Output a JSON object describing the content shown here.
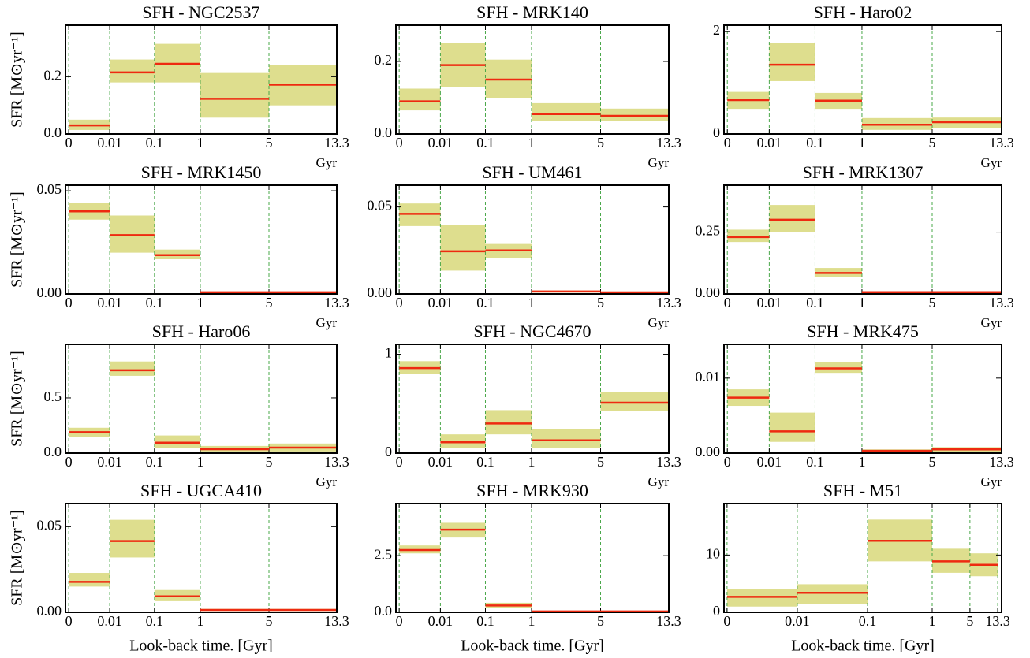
{
  "chart_data": [
    {
      "type": "binned-sfh",
      "title": "SFH - NGC2537",
      "bin_edges": [
        0,
        0.01,
        0.1,
        1,
        5,
        13.3
      ],
      "values": [
        0.03,
        0.215,
        0.245,
        0.123,
        0.172
      ],
      "lower": [
        0.014,
        0.18,
        0.18,
        0.057,
        0.1
      ],
      "upper": [
        0.05,
        0.26,
        0.315,
        0.213,
        0.24
      ],
      "ylim": [
        0,
        0.38
      ],
      "yticks": [
        {
          "value": 0,
          "label": "0.0"
        },
        {
          "value": 0.2,
          "label": "0.2"
        }
      ],
      "ylabel": "SFR [M⊙yr⁻¹]",
      "x_unit": "Gyr",
      "color": "#ee2a10",
      "band_color": "#dede8e",
      "edge_color": "#4aa84a"
    },
    {
      "type": "binned-sfh",
      "title": "SFH - MRK140",
      "bin_edges": [
        0,
        0.01,
        0.1,
        1,
        5,
        13.3
      ],
      "values": [
        0.09,
        0.19,
        0.15,
        0.055,
        0.05
      ],
      "lower": [
        0.065,
        0.13,
        0.1,
        0.035,
        0.035
      ],
      "upper": [
        0.125,
        0.25,
        0.205,
        0.085,
        0.07
      ],
      "ylim": [
        0,
        0.3
      ],
      "yticks": [
        {
          "value": 0,
          "label": "0.0"
        },
        {
          "value": 0.2,
          "label": "0.2"
        }
      ],
      "x_unit": "Gyr",
      "color": "#ee2a10",
      "band_color": "#dede8e",
      "edge_color": "#4aa84a"
    },
    {
      "type": "binned-sfh",
      "title": "SFH - Haro02",
      "bin_edges": [
        0,
        0.01,
        0.1,
        1,
        5,
        13.3
      ],
      "values": [
        0.66,
        1.35,
        0.65,
        0.18,
        0.23
      ],
      "lower": [
        0.49,
        1.03,
        0.49,
        0.08,
        0.12
      ],
      "upper": [
        0.82,
        1.77,
        0.8,
        0.31,
        0.32
      ],
      "ylim": [
        0,
        2.12
      ],
      "yticks": [
        0,
        2
      ],
      "x_unit": "Gyr",
      "color": "#ee2a10",
      "band_color": "#dede8e",
      "edge_color": "#4aa84a"
    },
    {
      "type": "binned-sfh",
      "title": "SFH - MRK1450",
      "bin_edges": [
        0,
        0.01,
        0.1,
        1,
        5,
        13.3
      ],
      "values": [
        0.04,
        0.0285,
        0.0188,
        0.0008,
        0.0008
      ],
      "lower": [
        0.036,
        0.02,
        0.0168,
        0.0003,
        0.0003
      ],
      "upper": [
        0.044,
        0.038,
        0.0215,
        0.0012,
        0.0012
      ],
      "ylim": [
        0,
        0.0527
      ],
      "yticks": [
        {
          "value": 0,
          "label": "0.00"
        },
        {
          "value": 0.05,
          "label": "0.05"
        }
      ],
      "ylabel": "SFR [M⊙yr⁻¹]",
      "x_unit": "Gyr",
      "color": "#ee2a10",
      "band_color": "#dede8e",
      "edge_color": "#4aa84a"
    },
    {
      "type": "binned-sfh",
      "title": "SFH - UM461",
      "bin_edges": [
        0,
        0.01,
        0.1,
        1,
        5,
        13.3
      ],
      "values": [
        0.046,
        0.0245,
        0.025,
        0.0014,
        0.0009
      ],
      "lower": [
        0.039,
        0.0134,
        0.0208,
        0.0008,
        0.0004
      ],
      "upper": [
        0.052,
        0.0398,
        0.0287,
        0.002,
        0.0014
      ],
      "ylim": [
        0,
        0.0625
      ],
      "yticks": [
        {
          "value": 0,
          "label": "0.00"
        },
        {
          "value": 0.05,
          "label": "0.05"
        }
      ],
      "x_unit": "Gyr",
      "color": "#ee2a10",
      "band_color": "#dede8e",
      "edge_color": "#4aa84a"
    },
    {
      "type": "binned-sfh",
      "title": "SFH - MRK1307",
      "bin_edges": [
        0,
        0.01,
        0.1,
        1,
        5,
        13.3
      ],
      "values": [
        0.23,
        0.3,
        0.085,
        0.007,
        0.007
      ],
      "lower": [
        0.21,
        0.25,
        0.068,
        0.003,
        0.003
      ],
      "upper": [
        0.26,
        0.36,
        0.105,
        0.01,
        0.01
      ],
      "ylim": [
        0,
        0.44
      ],
      "yticks": [
        {
          "value": 0,
          "label": "0.00"
        },
        {
          "value": 0.25,
          "label": "0.25"
        }
      ],
      "x_unit": "Gyr",
      "color": "#ee2a10",
      "band_color": "#dede8e",
      "edge_color": "#4aa84a"
    },
    {
      "type": "binned-sfh",
      "title": "SFH - Haro06",
      "bin_edges": [
        0,
        0.01,
        0.1,
        1,
        5,
        13.3
      ],
      "values": [
        0.19,
        0.75,
        0.095,
        0.036,
        0.05
      ],
      "lower": [
        0.145,
        0.7,
        0.05,
        0.015,
        0.015
      ],
      "upper": [
        0.23,
        0.83,
        0.16,
        0.065,
        0.087
      ],
      "ylim": [
        0,
        0.985
      ],
      "yticks": [
        {
          "value": 0,
          "label": "0.0"
        },
        {
          "value": 0.5,
          "label": "0.5"
        }
      ],
      "ylabel": "SFR [M⊙yr⁻¹]",
      "x_unit": "Gyr",
      "color": "#ee2a10",
      "band_color": "#dede8e",
      "edge_color": "#4aa84a"
    },
    {
      "type": "binned-sfh",
      "title": "SFH - NGC4670",
      "bin_edges": [
        0,
        0.01,
        0.1,
        1,
        5,
        13.3
      ],
      "values": [
        0.86,
        0.11,
        0.3,
        0.13,
        0.51
      ],
      "lower": [
        0.8,
        0.056,
        0.19,
        0.056,
        0.43
      ],
      "upper": [
        0.93,
        0.19,
        0.435,
        0.24,
        0.62
      ],
      "ylim": [
        0,
        1.1
      ],
      "yticks": [
        0,
        1
      ],
      "x_unit": "Gyr",
      "color": "#ee2a10",
      "band_color": "#dede8e",
      "edge_color": "#4aa84a"
    },
    {
      "type": "binned-sfh",
      "title": "SFH - MRK475",
      "bin_edges": [
        0,
        0.01,
        0.1,
        1,
        5,
        13.3
      ],
      "values": [
        0.0074,
        0.0029,
        0.0113,
        0.0003,
        0.0005
      ],
      "lower": [
        0.0063,
        0.0015,
        0.0107,
        0.0001,
        0.0002
      ],
      "upper": [
        0.0085,
        0.0054,
        0.0121,
        0.0005,
        0.0008
      ],
      "ylim": [
        0,
        0.0145
      ],
      "yticks": [
        {
          "value": 0,
          "label": "0.00"
        },
        {
          "value": 0.01,
          "label": "0.01"
        }
      ],
      "x_unit": "Gyr",
      "color": "#ee2a10",
      "band_color": "#dede8e",
      "edge_color": "#4aa84a"
    },
    {
      "type": "binned-sfh",
      "title": "SFH - UGCA410",
      "bin_edges": [
        0,
        0.01,
        0.1,
        1,
        5,
        13.3
      ],
      "values": [
        0.0178,
        0.0416,
        0.0093,
        0.0014,
        0.0014
      ],
      "lower": [
        0.015,
        0.032,
        0.0065,
        0.0008,
        0.0008
      ],
      "upper": [
        0.023,
        0.054,
        0.013,
        0.002,
        0.002
      ],
      "ylim": [
        0,
        0.0635
      ],
      "yticks": [
        {
          "value": 0,
          "label": "0.00"
        },
        {
          "value": 0.05,
          "label": "0.05"
        }
      ],
      "ylabel": "SFR [M⊙yr⁻¹]",
      "xlabel": "Look-back time. [Gyr]",
      "color": "#ee2a10",
      "band_color": "#dede8e",
      "edge_color": "#4aa84a"
    },
    {
      "type": "binned-sfh",
      "title": "SFH - MRK930",
      "bin_edges": [
        0,
        0.01,
        0.1,
        1,
        5,
        13.3
      ],
      "values": [
        2.75,
        3.65,
        0.3,
        0.04,
        0.04
      ],
      "lower": [
        2.6,
        3.3,
        0.2,
        0.02,
        0.02
      ],
      "upper": [
        2.95,
        3.95,
        0.42,
        0.06,
        0.06
      ],
      "ylim": [
        0,
        4.8
      ],
      "yticks": [
        {
          "value": 0,
          "label": "0.0"
        },
        2.5
      ],
      "xlabel": "Look-back time. [Gyr]",
      "color": "#ee2a10",
      "band_color": "#dede8e",
      "edge_color": "#4aa84a"
    },
    {
      "type": "binned-sfh",
      "title": "SFH - M51",
      "bin_edges": [
        0,
        0.01,
        0.1,
        1,
        5,
        13.3
      ],
      "values": [
        2.7,
        3.4,
        12.5,
        8.9,
        8.3
      ],
      "lower": [
        1.0,
        1.4,
        8.9,
        6.9,
        6.3
      ],
      "upper": [
        4.1,
        4.9,
        16.2,
        11.1,
        10.3
      ],
      "ylim": [
        0,
        19
      ],
      "yticks": [
        0,
        10
      ],
      "xlabel": "Look-back time. [Gyr]",
      "color": "#ee2a10",
      "band_color": "#dede8e",
      "edge_color": "#4aa84a"
    }
  ]
}
